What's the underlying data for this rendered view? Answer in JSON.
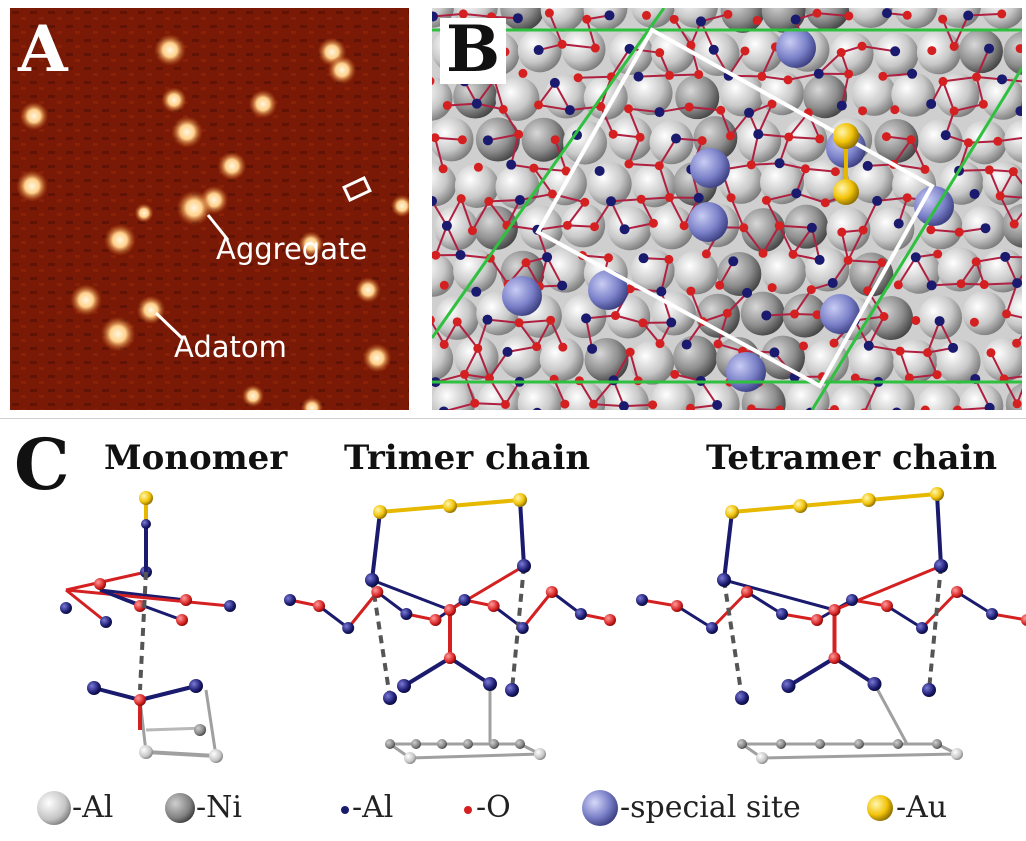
{
  "panels": {
    "a": {
      "letter": "A",
      "labels": {
        "aggregate": "Aggregate",
        "adatom": "Adatom"
      }
    },
    "b": {
      "letter": "B"
    },
    "c": {
      "letter": "C",
      "structures": [
        {
          "title": "Monomer"
        },
        {
          "title": "Trimer chain"
        },
        {
          "title": "Tetramer chain"
        }
      ]
    }
  },
  "legend": [
    {
      "label": "-Al",
      "icon": "large-gray-sphere-icon"
    },
    {
      "label": "-Ni",
      "icon": "dark-gray-sphere-icon"
    },
    {
      "label": "-Al",
      "icon": "small-navy-dot-icon"
    },
    {
      "label": "-O",
      "icon": "small-red-dot-icon"
    },
    {
      "label": "-special site",
      "icon": "blue-sphere-icon"
    },
    {
      "label": "-Au",
      "icon": "yellow-sphere-icon"
    }
  ],
  "colors": {
    "stm_background": "#7a1a06",
    "stm_spot": "#ffd9a0",
    "substrate_al": "#e6e6e6",
    "substrate_ni": "#8a8a8a",
    "oxide_al": "#1a1a6e",
    "oxide_o": "#d42020",
    "special_site": "#7a80c8",
    "au": "#f2c40a",
    "cell_frame": "#ffffff",
    "cell_line": "#30c040"
  }
}
